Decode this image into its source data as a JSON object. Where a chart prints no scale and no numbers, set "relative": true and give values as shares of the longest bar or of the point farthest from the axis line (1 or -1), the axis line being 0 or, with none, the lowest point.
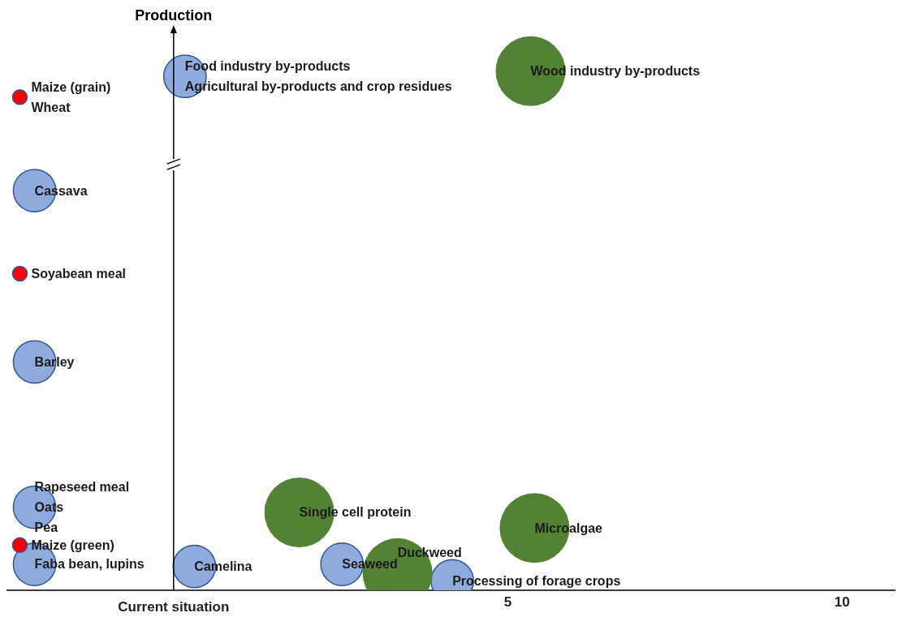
{
  "chart_data": {
    "type": "bubble",
    "ylabel": "Production",
    "relative": true,
    "xlim": [
      -2.5,
      10.8
    ],
    "xlabel": "Current situation",
    "xticks": [
      5,
      10
    ],
    "grid": false,
    "legend": false,
    "series": [
      {
        "color": "#8faadc",
        "x": [
          0.17,
          -2.08,
          -2.08,
          -2.08,
          -2.08,
          0.31,
          2.52,
          4.17
        ],
        "values": [
          0.99,
          0.77,
          0.44,
          0.16,
          0.05,
          0.046,
          0.05,
          0.018
        ],
        "sizes": [
          0.37,
          0.37,
          0.37,
          0.37,
          0.37,
          0.37,
          0.37,
          0.37
        ]
      },
      {
        "color": "#548235",
        "x": [
          5.34,
          1.88,
          5.4,
          3.35
        ],
        "values": [
          1.0,
          0.15,
          0.12,
          0.033
        ],
        "sizes": [
          1,
          1,
          1,
          1
        ]
      },
      {
        "color": "#ff0000",
        "x": [
          -2.3,
          -2.3,
          -2.3
        ],
        "values": [
          0.95,
          0.61,
          0.087
        ],
        "sizes": [
          0.044,
          0.044,
          0.044
        ]
      }
    ],
    "annotations": [
      {
        "text": "Food industry by-products",
        "x": 0.17,
        "y": 0.99
      },
      {
        "text": "Agricultural by-products and crop residues",
        "x": 0.17,
        "y": 0.99
      },
      {
        "text": "Wood industry by-products",
        "x": 5.34,
        "y": 1.0
      },
      {
        "text": "Maize (grain)",
        "x": -2.3,
        "y": 0.95
      },
      {
        "text": "Wheat",
        "x": -2.3,
        "y": 0.95
      },
      {
        "text": "Cassava",
        "x": -2.08,
        "y": 0.77
      },
      {
        "text": "Soyabean meal",
        "x": -2.3,
        "y": 0.61
      },
      {
        "text": "Barley",
        "x": -2.08,
        "y": 0.44
      },
      {
        "text": "Rapeseed meal",
        "x": -2.08,
        "y": 0.16
      },
      {
        "text": "Oats",
        "x": -2.08,
        "y": 0.16
      },
      {
        "text": "Pea",
        "x": -2.08,
        "y": 0.16
      },
      {
        "text": "Maize (green)",
        "x": -2.3,
        "y": 0.087
      },
      {
        "text": "Faba bean, lupins",
        "x": -2.08,
        "y": 0.05
      },
      {
        "text": "Camelina",
        "x": 0.31,
        "y": 0.046
      },
      {
        "text": "Single cell protein",
        "x": 1.88,
        "y": 0.15
      },
      {
        "text": "Microalgae",
        "x": 5.4,
        "y": 0.12
      },
      {
        "text": "Duckweed",
        "x": 3.35,
        "y": 0.033
      },
      {
        "text": "Seaweed",
        "x": 2.52,
        "y": 0.05
      },
      {
        "text": "Processing of forage crops",
        "x": 4.17,
        "y": 0.018
      }
    ]
  }
}
